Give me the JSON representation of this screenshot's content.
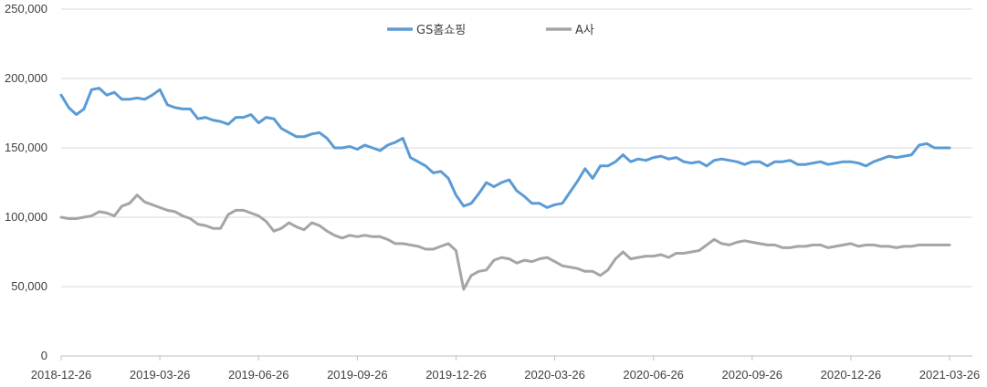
{
  "chart_data": {
    "type": "line",
    "title": "",
    "xlabel": "",
    "ylabel": "",
    "ylim": [
      0,
      250000
    ],
    "yticks": [
      0,
      50000,
      100000,
      150000,
      200000,
      250000
    ],
    "ytick_labels": [
      "0",
      "50,000",
      "100,000",
      "150,000",
      "200,000",
      "250,000"
    ],
    "xtick_labels": [
      "2018-12-26",
      "2019-03-26",
      "2019-06-26",
      "2019-09-26",
      "2019-12-26",
      "2020-03-26",
      "2020-06-26",
      "2020-09-26",
      "2020-12-26",
      "2021-03-26"
    ],
    "grid": true,
    "legend_position": "top-center",
    "x": [
      "2018-12-26",
      "2019-01-02",
      "2019-01-09",
      "2019-01-16",
      "2019-01-23",
      "2019-01-30",
      "2019-02-06",
      "2019-02-13",
      "2019-02-20",
      "2019-02-27",
      "2019-03-06",
      "2019-03-13",
      "2019-03-20",
      "2019-03-27",
      "2019-04-03",
      "2019-04-10",
      "2019-04-17",
      "2019-04-24",
      "2019-05-01",
      "2019-05-08",
      "2019-05-15",
      "2019-05-22",
      "2019-05-29",
      "2019-06-05",
      "2019-06-12",
      "2019-06-19",
      "2019-06-26",
      "2019-07-03",
      "2019-07-10",
      "2019-07-17",
      "2019-07-24",
      "2019-07-31",
      "2019-08-07",
      "2019-08-14",
      "2019-08-21",
      "2019-08-28",
      "2019-09-04",
      "2019-09-11",
      "2019-09-18",
      "2019-09-26",
      "2019-10-02",
      "2019-10-09",
      "2019-10-16",
      "2019-10-23",
      "2019-10-30",
      "2019-11-06",
      "2019-11-13",
      "2019-11-20",
      "2019-11-27",
      "2019-12-04",
      "2019-12-11",
      "2019-12-18",
      "2019-12-26",
      "2020-01-02",
      "2020-01-09",
      "2020-01-16",
      "2020-01-23",
      "2020-01-30",
      "2020-02-06",
      "2020-02-13",
      "2020-02-20",
      "2020-02-27",
      "2020-03-05",
      "2020-03-12",
      "2020-03-19",
      "2020-03-26",
      "2020-04-02",
      "2020-04-09",
      "2020-04-16",
      "2020-04-23",
      "2020-04-30",
      "2020-05-07",
      "2020-05-14",
      "2020-05-21",
      "2020-05-28",
      "2020-06-04",
      "2020-06-11",
      "2020-06-18",
      "2020-06-26",
      "2020-07-02",
      "2020-07-09",
      "2020-07-16",
      "2020-07-23",
      "2020-07-30",
      "2020-08-06",
      "2020-08-13",
      "2020-08-20",
      "2020-08-27",
      "2020-09-03",
      "2020-09-10",
      "2020-09-17",
      "2020-09-26",
      "2020-10-01",
      "2020-10-08",
      "2020-10-15",
      "2020-10-22",
      "2020-10-29",
      "2020-11-05",
      "2020-11-12",
      "2020-11-19",
      "2020-11-26",
      "2020-12-03",
      "2020-12-10",
      "2020-12-17",
      "2020-12-26",
      "2020-12-31",
      "2021-01-07",
      "2021-01-14",
      "2021-01-21",
      "2021-01-28",
      "2021-02-04",
      "2021-02-11",
      "2021-02-18",
      "2021-02-25",
      "2021-03-04",
      "2021-03-11",
      "2021-03-18",
      "2021-03-26"
    ],
    "series": [
      {
        "name": "GS홈쇼핑",
        "color": "#5b9bd5",
        "values": [
          188000,
          179000,
          174000,
          178000,
          192000,
          193000,
          188000,
          190000,
          185000,
          185000,
          186000,
          185000,
          188000,
          192000,
          181000,
          179000,
          178000,
          178000,
          171000,
          172000,
          170000,
          169000,
          167000,
          172000,
          172000,
          174000,
          168000,
          172000,
          171000,
          164000,
          161000,
          158000,
          158000,
          160000,
          161000,
          157000,
          150000,
          150000,
          151000,
          149000,
          152000,
          150000,
          148000,
          152000,
          154000,
          157000,
          143000,
          140000,
          137000,
          132000,
          133000,
          128000,
          116000,
          108000,
          110000,
          117000,
          125000,
          122000,
          125000,
          127000,
          119000,
          115000,
          110000,
          110000,
          107000,
          109000,
          110000,
          118000,
          126000,
          135000,
          128000,
          137000,
          137000,
          140000,
          145000,
          140000,
          142000,
          141000,
          143000,
          144000,
          142000,
          143000,
          140000,
          139000,
          140000,
          137000,
          141000,
          142000,
          141000,
          140000,
          138000,
          140000,
          140000,
          137000,
          140000,
          140000,
          141000,
          138000,
          138000,
          139000,
          140000,
          138000,
          139000,
          140000,
          140000,
          139000,
          137000,
          140000,
          142000,
          144000,
          143000,
          144000,
          145000,
          152000,
          153000,
          150000,
          150000,
          150000
        ],
        "comment_values_note": ""
      },
      {
        "name": "A사",
        "color": "#a5a5a5",
        "values": [
          100000,
          99000,
          99000,
          100000,
          101000,
          104000,
          103000,
          101000,
          108000,
          110000,
          116000,
          111000,
          109000,
          107000,
          105000,
          104000,
          101000,
          99000,
          95000,
          94000,
          92000,
          92000,
          102000,
          105000,
          105000,
          103000,
          101000,
          97000,
          90000,
          92000,
          96000,
          93000,
          91000,
          96000,
          94000,
          90000,
          87000,
          85000,
          87000,
          86000,
          87000,
          86000,
          86000,
          84000,
          81000,
          81000,
          80000,
          79000,
          77000,
          77000,
          79000,
          81000,
          76000,
          48000,
          58000,
          61000,
          62000,
          69000,
          71000,
          70000,
          67000,
          69000,
          68000,
          70000,
          71000,
          68000,
          65000,
          64000,
          63000,
          61000,
          61000,
          58000,
          62000,
          70000,
          75000,
          70000,
          71000,
          72000,
          72000,
          73000,
          71000,
          74000,
          74000,
          75000,
          76000,
          80000,
          84000,
          81000,
          80000,
          82000,
          83000,
          82000,
          81000,
          80000,
          80000,
          78000,
          78000,
          79000,
          79000,
          80000,
          80000,
          78000,
          79000,
          80000,
          81000,
          79000,
          80000,
          80000,
          79000,
          79000,
          78000,
          79000,
          79000,
          80000,
          80000,
          80000,
          80000,
          80000
        ]
      }
    ]
  }
}
